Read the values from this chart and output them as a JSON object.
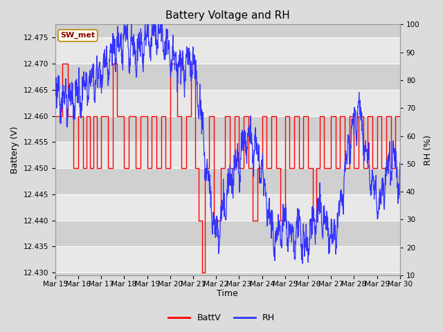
{
  "title": "Battery Voltage and RH",
  "xlabel": "Time",
  "ylabel_left": "Battery (V)",
  "ylabel_right": "RH (%)",
  "station_label": "SW_met",
  "x_tick_labels": [
    "Mar 15",
    "Mar 16",
    "Mar 17",
    "Mar 18",
    "Mar 19",
    "Mar 20",
    "Mar 21",
    "Mar 22",
    "Mar 23",
    "Mar 24",
    "Mar 25",
    "Mar 26",
    "Mar 27",
    "Mar 28",
    "Mar 29",
    "Mar 30"
  ],
  "ylim_left": [
    12.4295,
    12.4775
  ],
  "ylim_right": [
    10,
    100
  ],
  "yticks_left": [
    12.43,
    12.435,
    12.44,
    12.445,
    12.45,
    12.455,
    12.46,
    12.465,
    12.47,
    12.475
  ],
  "yticks_right": [
    10,
    20,
    30,
    40,
    50,
    60,
    70,
    80,
    90,
    100
  ],
  "batt_color": "#FF0000",
  "rh_color": "#3333FF",
  "bg_color": "#DCDCDC",
  "plot_bg_dark": "#D0D0D0",
  "plot_bg_light": "#E8E8E8",
  "grid_color": "#FFFFFF",
  "title_fontsize": 11,
  "label_fontsize": 9,
  "tick_fontsize": 7.5,
  "legend_fontsize": 9
}
